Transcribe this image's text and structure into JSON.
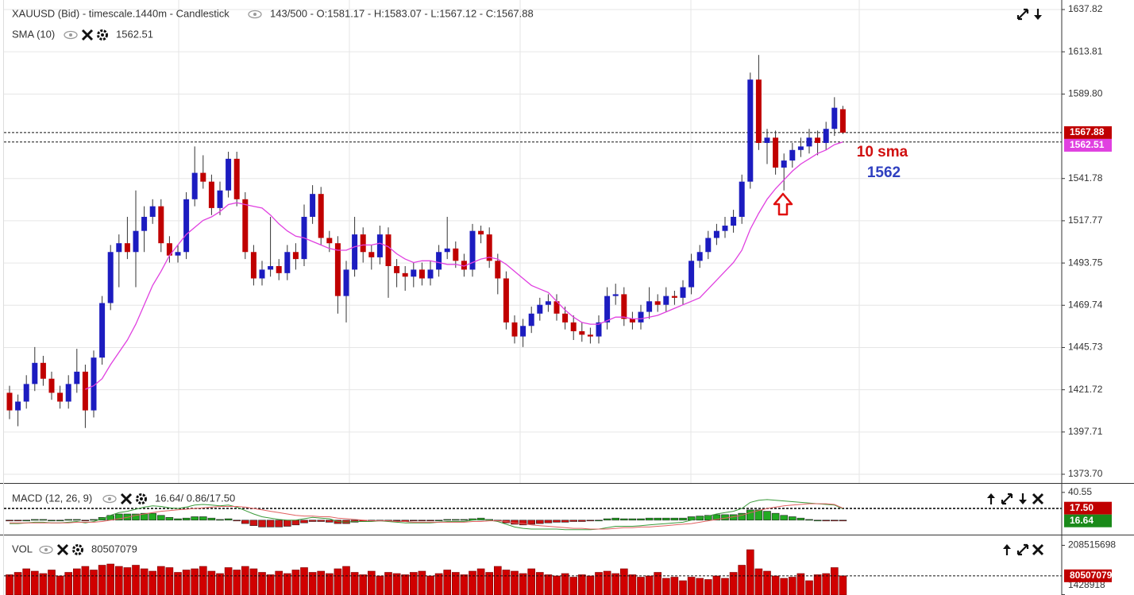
{
  "chart_data": [
    {
      "type": "candlestick",
      "title": "XAUUSD (Bid) - timescale.1440m - Candlestick",
      "info": "143/500 - O:1581.17 - H:1583.07 - L:1567.12 - C:1567.88",
      "up_color": "#1c1cc0",
      "down_color": "#c00000",
      "open": [
        1420,
        1410,
        1415,
        1425,
        1437,
        1428,
        1420,
        1415,
        1425,
        1432,
        1410,
        1440,
        1471,
        1500,
        1505,
        1500,
        1512,
        1520,
        1526,
        1505,
        1498,
        1500,
        1530,
        1545,
        1540,
        1525,
        1535,
        1553,
        1530,
        1500,
        1485,
        1490,
        1492,
        1488,
        1500,
        1496,
        1520,
        1533,
        1508,
        1505,
        1475,
        1490,
        1510,
        1500,
        1497,
        1510,
        1492,
        1488,
        1486,
        1490,
        1485,
        1490,
        1500,
        1502,
        1495,
        1490,
        1512,
        1510,
        1495,
        1485,
        1460,
        1452,
        1458,
        1465,
        1470,
        1472,
        1465,
        1460,
        1455,
        1453,
        1452,
        1460,
        1475,
        1476,
        1462,
        1460,
        1466,
        1472,
        1470,
        1475,
        1474,
        1480,
        1495,
        1500,
        1508,
        1512,
        1515,
        1520,
        1540,
        1598,
        1562,
        1565,
        1548,
        1552,
        1558,
        1560,
        1565,
        1562,
        1570,
        1581.17
      ],
      "high": [
        1424,
        1419,
        1430,
        1446,
        1441,
        1432,
        1424,
        1430,
        1445,
        1436,
        1444,
        1475,
        1504,
        1510,
        1520,
        1535,
        1526,
        1530,
        1530,
        1509,
        1504,
        1534,
        1560,
        1555,
        1544,
        1540,
        1557,
        1557,
        1534,
        1504,
        1495,
        1520,
        1496,
        1504,
        1505,
        1527,
        1538,
        1537,
        1512,
        1509,
        1495,
        1520,
        1514,
        1504,
        1515,
        1514,
        1496,
        1492,
        1494,
        1494,
        1495,
        1504,
        1520,
        1506,
        1499,
        1516,
        1515,
        1514,
        1499,
        1489,
        1464,
        1462,
        1469,
        1474,
        1476,
        1476,
        1469,
        1464,
        1460,
        1457,
        1464,
        1480,
        1482,
        1480,
        1466,
        1470,
        1480,
        1476,
        1480,
        1478,
        1484,
        1499,
        1504,
        1512,
        1516,
        1520,
        1524,
        1544,
        1602,
        1612,
        1570,
        1569,
        1556,
        1562,
        1565,
        1570,
        1569,
        1574,
        1588,
        1583.07
      ],
      "low": [
        1405,
        1401,
        1411,
        1421,
        1424,
        1416,
        1411,
        1411,
        1420,
        1400,
        1406,
        1436,
        1467,
        1480,
        1496,
        1480,
        1500,
        1516,
        1500,
        1494,
        1494,
        1496,
        1526,
        1536,
        1521,
        1521,
        1531,
        1526,
        1496,
        1481,
        1481,
        1486,
        1484,
        1484,
        1490,
        1492,
        1516,
        1504,
        1500,
        1465,
        1460,
        1486,
        1494,
        1490,
        1493,
        1474,
        1480,
        1478,
        1480,
        1481,
        1481,
        1486,
        1496,
        1491,
        1486,
        1486,
        1505,
        1491,
        1476,
        1456,
        1448,
        1446,
        1454,
        1461,
        1466,
        1461,
        1456,
        1450,
        1449,
        1448,
        1448,
        1456,
        1470,
        1458,
        1456,
        1456,
        1462,
        1466,
        1466,
        1470,
        1470,
        1476,
        1491,
        1496,
        1504,
        1508,
        1511,
        1516,
        1536,
        1558,
        1550,
        1544,
        1535,
        1548,
        1554,
        1556,
        1555,
        1558,
        1566,
        1567.12
      ],
      "close": [
        1410,
        1415,
        1425,
        1437,
        1428,
        1420,
        1415,
        1425,
        1432,
        1410,
        1440,
        1471,
        1500,
        1505,
        1500,
        1512,
        1520,
        1526,
        1505,
        1498,
        1500,
        1530,
        1545,
        1540,
        1525,
        1535,
        1553,
        1530,
        1500,
        1485,
        1490,
        1492,
        1488,
        1500,
        1496,
        1520,
        1533,
        1508,
        1505,
        1475,
        1490,
        1510,
        1500,
        1497,
        1510,
        1492,
        1488,
        1486,
        1490,
        1485,
        1490,
        1500,
        1502,
        1495,
        1490,
        1512,
        1510,
        1495,
        1485,
        1460,
        1452,
        1458,
        1465,
        1470,
        1472,
        1465,
        1460,
        1455,
        1453,
        1452,
        1460,
        1475,
        1476,
        1462,
        1460,
        1466,
        1472,
        1470,
        1475,
        1474,
        1480,
        1495,
        1500,
        1508,
        1512,
        1515,
        1520,
        1540,
        1598,
        1562,
        1565,
        1548,
        1552,
        1558,
        1560,
        1565,
        1562,
        1570,
        1582,
        1567.88
      ],
      "sma": {
        "name": "SMA (10)",
        "color": "#e040e0",
        "values": [
          null,
          null,
          null,
          null,
          null,
          null,
          null,
          null,
          null,
          1422,
          1424,
          1428,
          1436,
          1443,
          1450,
          1459,
          1470,
          1481,
          1489,
          1498,
          1504,
          1510,
          1514,
          1518,
          1520,
          1523,
          1527,
          1528,
          1527,
          1526,
          1525,
          1521,
          1516,
          1512,
          1509,
          1508,
          1506,
          1504,
          1502,
          1501,
          1501,
          1503,
          1504,
          1504,
          1505,
          1503,
          1499,
          1496,
          1494,
          1495,
          1495,
          1494,
          1493,
          1493,
          1492,
          1494,
          1496,
          1497,
          1496,
          1493,
          1489,
          1485,
          1481,
          1479,
          1477,
          1472,
          1467,
          1463,
          1460,
          1459,
          1459,
          1461,
          1463,
          1463,
          1462,
          1462,
          1463,
          1464,
          1466,
          1468,
          1470,
          1472,
          1474,
          1479,
          1484,
          1489,
          1494,
          1501,
          1513,
          1522,
          1530,
          1536,
          1541,
          1546,
          1550,
          1553,
          1556,
          1558,
          1561,
          1562.51
        ]
      },
      "ylim": [
        1373.7,
        1637.82
      ],
      "yticks": [
        {
          "value": 1373.7,
          "label": "1373.70"
        },
        1397.71,
        1421.72,
        1445.73,
        1469.74,
        1493.75,
        1517.77,
        1541.78,
        {
          "value": 1589.8,
          "label": "1589.80"
        },
        1613.81,
        1637.82
      ],
      "grid": true,
      "tags": [
        1567.88,
        1562.51
      ],
      "tag_colors": [
        "#c00000",
        "#e040e0"
      ],
      "annotations": [
        {
          "text": "10 sma",
          "color": "#d01010"
        },
        {
          "text": "1562",
          "color": "#3040c0"
        }
      ]
    },
    {
      "type": "macd",
      "title": "MACD (12, 26, 9)",
      "info": "16.64/ 0.86/17.50",
      "macd": {
        "color": "#3a9a3a",
        "values": [
          -5,
          -5,
          -4,
          -3,
          -3,
          -4,
          -4,
          -3,
          -2,
          -4,
          -2,
          2,
          7,
          11,
          13,
          16,
          19,
          21,
          20,
          18,
          17,
          19,
          22,
          23,
          22,
          21,
          22,
          19,
          14,
          9,
          5,
          3,
          1,
          0,
          0,
          2,
          4,
          3,
          2,
          -2,
          -3,
          -2,
          -2,
          -2,
          -1,
          -2,
          -3,
          -4,
          -4,
          -4,
          -4,
          -3,
          -2,
          -2,
          -2,
          0,
          1,
          0,
          -2,
          -6,
          -10,
          -12,
          -13,
          -13,
          -13,
          -13,
          -14,
          -14,
          -14,
          -14,
          -13,
          -11,
          -9,
          -9,
          -9,
          -8,
          -7,
          -6,
          -5,
          -4,
          -3,
          0,
          3,
          6,
          9,
          11,
          13,
          17,
          26,
          29,
          30,
          29,
          28,
          27,
          26,
          25,
          24,
          23,
          22,
          16.64
        ]
      },
      "signal": {
        "color": "#e06060",
        "values": [
          -4,
          -4,
          -4,
          -4,
          -4,
          -4,
          -4,
          -4,
          -3,
          -3,
          -3,
          -2,
          0,
          2,
          4,
          7,
          9,
          11,
          13,
          14,
          15,
          16,
          17,
          18,
          19,
          20,
          20,
          20,
          19,
          17,
          15,
          13,
          11,
          9,
          7,
          6,
          6,
          5,
          5,
          3,
          2,
          1,
          0,
          -1,
          -1,
          -1,
          -2,
          -2,
          -3,
          -3,
          -3,
          -3,
          -3,
          -3,
          -3,
          -2,
          -2,
          -1,
          -1,
          -2,
          -4,
          -5,
          -7,
          -8,
          -9,
          -10,
          -11,
          -12,
          -12,
          -13,
          -13,
          -13,
          -12,
          -11,
          -11,
          -10,
          -10,
          -9,
          -8,
          -7,
          -6,
          -5,
          -3,
          -1,
          1,
          3,
          5,
          7,
          11,
          14,
          17,
          19,
          21,
          22,
          23,
          24,
          24,
          24,
          23,
          17.5
        ]
      },
      "histogram": {
        "up_color": "#22aa22",
        "down_color": "#cc1111",
        "values": [
          -1,
          -1,
          0,
          1,
          1,
          0,
          0,
          1,
          1,
          -1,
          1,
          4,
          7,
          9,
          9,
          9,
          10,
          10,
          7,
          4,
          2,
          3,
          5,
          5,
          3,
          1,
          2,
          -1,
          -5,
          -8,
          -10,
          -10,
          -10,
          -9,
          -7,
          -4,
          -2,
          -2,
          -3,
          -5,
          -5,
          -3,
          -2,
          -1,
          0,
          -1,
          -1,
          -2,
          -1,
          -1,
          -1,
          0,
          1,
          1,
          1,
          2,
          3,
          1,
          -1,
          -4,
          -6,
          -7,
          -6,
          -5,
          -4,
          -3,
          -3,
          -2,
          -2,
          -1,
          0,
          2,
          3,
          2,
          2,
          2,
          3,
          3,
          3,
          3,
          3,
          5,
          6,
          7,
          8,
          8,
          8,
          10,
          15,
          15,
          13,
          10,
          7,
          5,
          3,
          1,
          0,
          -1,
          -1,
          -0.86
        ]
      },
      "ylim": [
        -20,
        45
      ],
      "yticks": [
        40.55
      ],
      "tags": [
        {
          "value": 17.5,
          "label": "17.50"
        },
        16.64
      ],
      "tag_colors": [
        "#c00000",
        "#1a8a1a"
      ]
    },
    {
      "type": "volume",
      "title": "VOL",
      "color": "#d00000",
      "values": [
        85000000,
        95000000,
        110000000,
        100000000,
        90000000,
        105000000,
        80000000,
        95000000,
        110000000,
        120000000,
        105000000,
        125000000,
        130000000,
        120000000,
        115000000,
        125000000,
        110000000,
        100000000,
        120000000,
        115000000,
        95000000,
        105000000,
        110000000,
        120000000,
        100000000,
        90000000,
        115000000,
        105000000,
        120000000,
        110000000,
        95000000,
        85000000,
        100000000,
        90000000,
        105000000,
        115000000,
        95000000,
        100000000,
        90000000,
        110000000,
        120000000,
        95000000,
        85000000,
        100000000,
        80000000,
        95000000,
        90000000,
        85000000,
        95000000,
        100000000,
        80000000,
        90000000,
        105000000,
        95000000,
        85000000,
        100000000,
        110000000,
        95000000,
        120000000,
        105000000,
        100000000,
        90000000,
        110000000,
        95000000,
        85000000,
        80000000,
        90000000,
        75000000,
        85000000,
        80000000,
        95000000,
        100000000,
        90000000,
        110000000,
        85000000,
        75000000,
        80000000,
        95000000,
        70000000,
        75000000,
        60000000,
        75000000,
        70000000,
        65000000,
        80000000,
        70000000,
        95000000,
        125000000,
        190000000,
        110000000,
        100000000,
        80000000,
        70000000,
        75000000,
        90000000,
        60000000,
        85000000,
        90000000,
        115000000,
        80507079
      ],
      "ylim": [
        0,
        230000000
      ],
      "yticks": [
        1428918,
        208515698
      ],
      "tags": [
        80507079
      ],
      "tag_colors": [
        "#c00000"
      ]
    }
  ]
}
